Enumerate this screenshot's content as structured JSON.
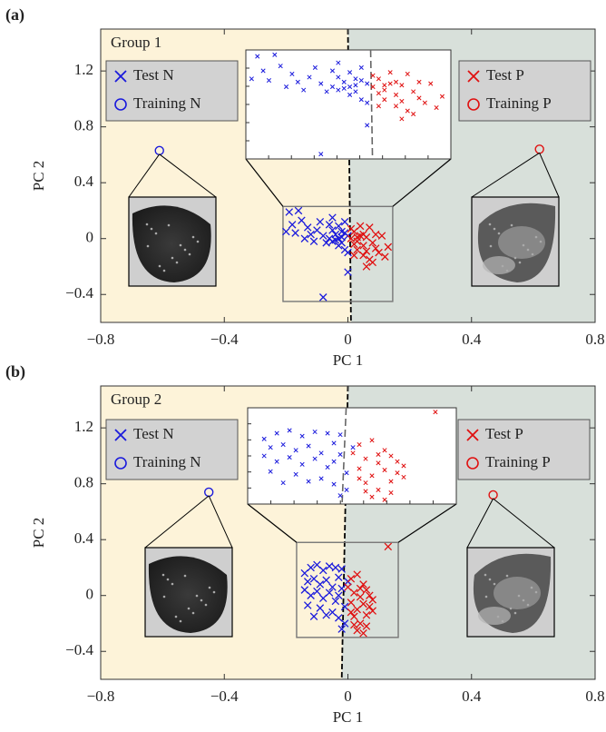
{
  "chart_data": [
    {
      "type": "scatter",
      "panel_label": "(a)",
      "group_label": "Group 1",
      "x_label": "PC 1",
      "y_label": "PC 2",
      "xlim": [
        -0.8,
        0.8
      ],
      "ylim": [
        -0.6,
        1.5
      ],
      "xticks": [
        {
          "value": -0.8,
          "label": "−0.8"
        },
        {
          "value": -0.4,
          "label": "−0.4"
        },
        0,
        0.4,
        0.8
      ],
      "yticks": [
        {
          "value": -0.4,
          "label": "−0.4"
        },
        0,
        0.4,
        0.8,
        1.2
      ],
      "region_colors": [
        "#fdf3d9",
        "#d8e0da"
      ],
      "boundary": {
        "x": [
          0.0,
          0.01
        ],
        "y": [
          1.5,
          -0.6
        ]
      },
      "inset": {
        "xlim": [
          -0.21,
          0.145
        ],
        "ylim": [
          -0.45,
          0.23
        ]
      },
      "series": [
        {
          "name": "Test N",
          "color": "#1a1adc",
          "marker": "x",
          "legend": "upper left",
          "x": [
            -0.19,
            -0.16,
            -0.18,
            -0.2,
            -0.15,
            -0.13,
            -0.12,
            -0.1,
            -0.14,
            -0.09,
            -0.08,
            -0.07,
            -0.06,
            -0.05,
            -0.05,
            -0.04,
            -0.03,
            -0.03,
            -0.02,
            -0.02,
            -0.01,
            -0.01,
            0.0,
            0.0,
            -0.04,
            -0.06,
            -0.11,
            -0.17,
            -0.08,
            0.0,
            -0.02,
            -0.03,
            -0.05,
            -0.01
          ],
          "values": [
            0.19,
            0.2,
            0.1,
            0.05,
            0.13,
            0.08,
            0.03,
            0.06,
            0.0,
            0.12,
            0.02,
            -0.03,
            0.1,
            0.06,
            -0.02,
            0.03,
            0.09,
            -0.05,
            0.01,
            0.05,
            -0.08,
            0.12,
            0.02,
            -0.1,
            -0.01,
            0.0,
            -0.02,
            0.04,
            -0.42,
            -0.24,
            -0.03,
            0.0,
            0.15,
            0.04
          ]
        },
        {
          "name": "Training N",
          "color": "#1a1adc",
          "marker": "o",
          "legend": "upper left",
          "x": [
            -0.61
          ],
          "values": [
            0.63
          ]
        },
        {
          "name": "Test P",
          "color": "#e01010",
          "marker": "x",
          "legend": "upper right",
          "x": [
            0.01,
            0.02,
            0.03,
            0.04,
            0.05,
            0.06,
            0.07,
            0.08,
            0.09,
            0.03,
            0.05,
            0.07,
            0.1,
            0.12,
            0.06,
            0.08,
            0.04,
            0.02,
            0.11,
            0.01,
            0.05,
            0.09,
            0.03,
            0.06,
            0.13,
            0.02
          ],
          "values": [
            0.0,
            0.05,
            -0.02,
            0.02,
            -0.05,
            0.01,
            0.08,
            -0.03,
            0.03,
            -0.08,
            -0.12,
            -0.15,
            -0.1,
            -0.13,
            -0.2,
            -0.17,
            0.09,
            -0.04,
            0.02,
            0.07,
            0.03,
            -0.07,
            0.01,
            -0.09,
            -0.06,
            -0.12
          ]
        },
        {
          "name": "Training P",
          "color": "#e01010",
          "marker": "o",
          "legend": "upper right",
          "x": [
            0.62
          ],
          "values": [
            0.64
          ]
        }
      ]
    },
    {
      "type": "scatter",
      "panel_label": "(b)",
      "group_label": "Group 2",
      "x_label": "PC 1",
      "y_label": "PC 2",
      "xlim": [
        -0.8,
        0.8
      ],
      "ylim": [
        -0.6,
        1.5
      ],
      "xticks": [
        {
          "value": -0.8,
          "label": "−0.8"
        },
        {
          "value": -0.4,
          "label": "−0.4"
        },
        0,
        0.4,
        0.8
      ],
      "yticks": [
        {
          "value": -0.4,
          "label": "−0.4"
        },
        0,
        0.4,
        0.8,
        1.2
      ],
      "region_colors": [
        "#fdf3d9",
        "#d8e0da"
      ],
      "boundary": {
        "x": [
          0.0,
          -0.02
        ],
        "y": [
          1.5,
          -0.6
        ]
      },
      "inset": {
        "xlim": [
          -0.166,
          0.163
        ],
        "ylim": [
          -0.3,
          0.38
        ]
      },
      "series": [
        {
          "name": "Test N",
          "color": "#1a1adc",
          "marker": "x",
          "legend": "upper left",
          "x": [
            -0.14,
            -0.12,
            -0.1,
            -0.08,
            -0.06,
            -0.04,
            -0.02,
            -0.13,
            -0.11,
            -0.09,
            -0.07,
            -0.05,
            -0.03,
            -0.14,
            -0.12,
            -0.1,
            -0.08,
            -0.06,
            -0.04,
            -0.02,
            -0.13,
            -0.09,
            -0.05,
            -0.03,
            -0.01,
            -0.02,
            -0.07,
            -0.11,
            0.0,
            -0.01,
            -0.03
          ],
          "values": [
            0.16,
            0.2,
            0.22,
            0.18,
            0.21,
            0.2,
            0.19,
            0.1,
            0.12,
            0.08,
            0.11,
            0.06,
            0.13,
            0.04,
            0.0,
            0.03,
            -0.02,
            0.02,
            -0.04,
            0.05,
            -0.07,
            -0.09,
            -0.12,
            -0.16,
            -0.2,
            -0.24,
            -0.14,
            -0.15,
            0.1,
            -0.08,
            0.0
          ]
        },
        {
          "name": "Training N",
          "color": "#1a1adc",
          "marker": "o",
          "legend": "upper left",
          "x": [
            -0.45
          ],
          "values": [
            0.74
          ]
        },
        {
          "name": "Test P",
          "color": "#e01010",
          "marker": "x",
          "legend": "upper right",
          "x": [
            0.01,
            0.03,
            0.0,
            0.02,
            0.04,
            0.06,
            0.05,
            0.03,
            0.07,
            0.02,
            0.04,
            0.06,
            0.08,
            0.01,
            0.05,
            0.07,
            0.03,
            0.05,
            0.02,
            0.06,
            0.04,
            0.01,
            0.08,
            0.13
          ],
          "values": [
            0.12,
            0.15,
            0.06,
            0.02,
            -0.01,
            0.04,
            -0.06,
            -0.1,
            -0.08,
            -0.15,
            -0.2,
            -0.14,
            -0.03,
            -0.05,
            0.08,
            0.0,
            -0.25,
            -0.27,
            -0.21,
            -0.22,
            0.05,
            -0.12,
            -0.11,
            0.35
          ]
        },
        {
          "name": "Training P",
          "color": "#e01010",
          "marker": "o",
          "legend": "upper right",
          "x": [
            0.47
          ],
          "values": [
            0.72
          ]
        }
      ]
    }
  ]
}
